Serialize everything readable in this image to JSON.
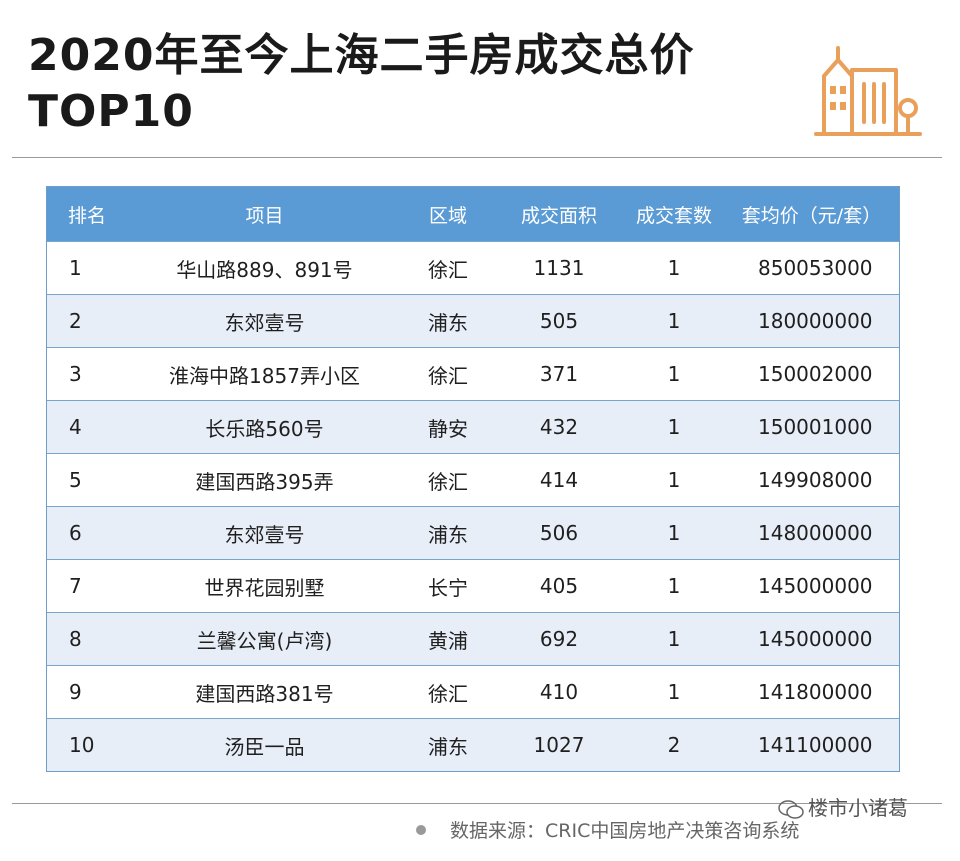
{
  "title": {
    "line1": "2020年至今上海二手房成交总价",
    "line2": "TOP10"
  },
  "colors": {
    "header_bg": "#5b9bd5",
    "row_alt_bg": "#e8eef8",
    "icon_accent": "#e8a05a"
  },
  "logo_icon": "buildings-icon",
  "table": {
    "headers": [
      "排名",
      "项目",
      "区域",
      "成交面积",
      "成交套数",
      "套均价（元/套）"
    ],
    "rows": [
      [
        "1",
        "华山路889、891号",
        "徐汇",
        "1131",
        "1",
        "850053000"
      ],
      [
        "2",
        "东郊壹号",
        "浦东",
        "505",
        "1",
        "180000000"
      ],
      [
        "3",
        "淮海中路1857弄小区",
        "徐汇",
        "371",
        "1",
        "150002000"
      ],
      [
        "4",
        "长乐路560号",
        "静安",
        "432",
        "1",
        "150001000"
      ],
      [
        "5",
        "建国西路395弄",
        "徐汇",
        "414",
        "1",
        "149908000"
      ],
      [
        "6",
        "东郊壹号",
        "浦东",
        "506",
        "1",
        "148000000"
      ],
      [
        "7",
        "世界花园别墅",
        "长宁",
        "405",
        "1",
        "145000000"
      ],
      [
        "8",
        "兰馨公寓(卢湾)",
        "黄浦",
        "692",
        "1",
        "145000000"
      ],
      [
        "9",
        "建国西路381号",
        "徐汇",
        "410",
        "1",
        "141800000"
      ],
      [
        "10",
        "汤臣一品",
        "浦东",
        "1027",
        "2",
        "141100000"
      ]
    ]
  },
  "footer": {
    "source": "数据来源：CRIC中国房地产决策咨询系统",
    "watermark": "楼市小诸葛"
  }
}
